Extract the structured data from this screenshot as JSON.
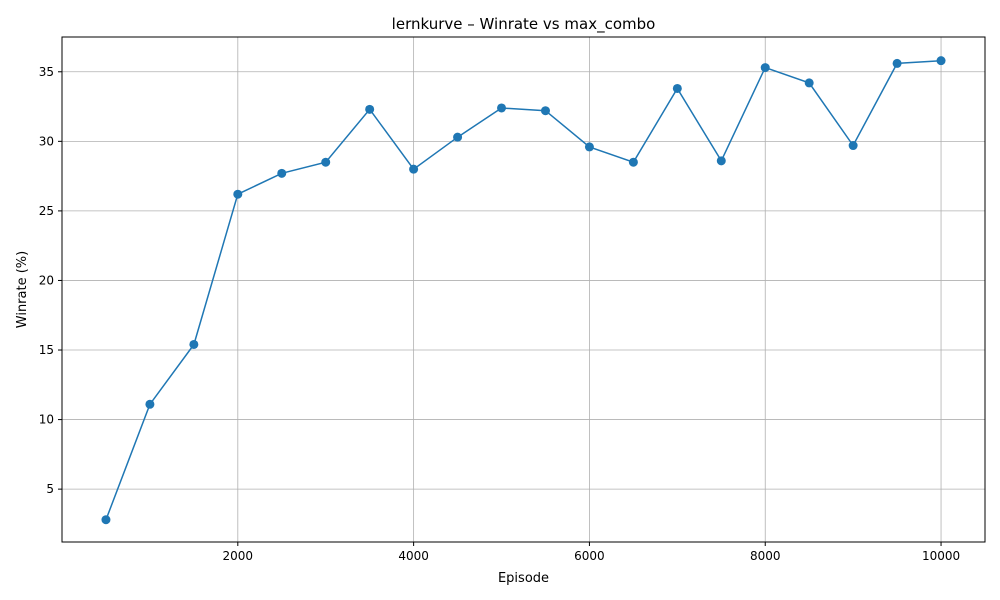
{
  "chart_data": {
    "type": "line",
    "title": "lernkurve – Winrate vs max_combo",
    "xlabel": "Episode",
    "ylabel": "Winrate (%)",
    "xlim": [
      0,
      10500
    ],
    "ylim": [
      1.2,
      37.5
    ],
    "xticks": [
      2000,
      4000,
      6000,
      8000,
      10000
    ],
    "xtick_labels": [
      "2000",
      "4000",
      "6000",
      "8000",
      "10000"
    ],
    "yticks": [
      5,
      10,
      15,
      20,
      25,
      30,
      35
    ],
    "ytick_labels": [
      "5",
      "10",
      "15",
      "20",
      "25",
      "30",
      "35"
    ],
    "grid": true,
    "line_color": "#1f77b4",
    "series": [
      {
        "name": "max_combo",
        "x": [
          500,
          1000,
          1500,
          2000,
          2500,
          3000,
          3500,
          4000,
          4500,
          5000,
          5500,
          6000,
          6500,
          7000,
          7500,
          8000,
          8500,
          9000,
          9500,
          10000
        ],
        "values": [
          2.8,
          11.1,
          15.4,
          26.2,
          27.7,
          28.5,
          32.3,
          28.0,
          30.3,
          32.4,
          32.2,
          29.6,
          28.5,
          33.8,
          28.6,
          35.3,
          34.2,
          29.7,
          35.6,
          35.8
        ]
      }
    ]
  }
}
